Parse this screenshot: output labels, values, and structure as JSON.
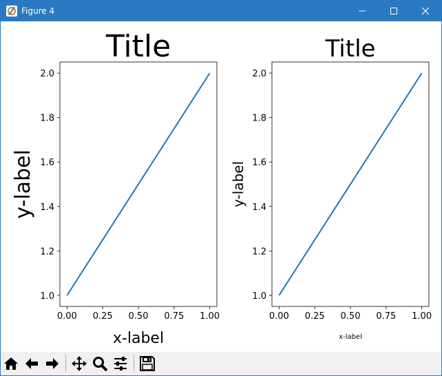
{
  "window": {
    "title": "Figure 4",
    "minimize": "—",
    "maximize": "☐",
    "close": "✕"
  },
  "chart_data": [
    {
      "type": "line",
      "title": "Title",
      "xlabel": "x-label",
      "ylabel": "y-label",
      "x": [
        0.0,
        1.0
      ],
      "series": [
        {
          "values": [
            1.0,
            2.0
          ],
          "color": "#1f77b4"
        }
      ],
      "xlim": [
        -0.05,
        1.05
      ],
      "ylim": [
        0.95,
        2.05
      ],
      "xticks": [
        "0.00",
        "0.25",
        "0.50",
        "0.75",
        "1.00"
      ],
      "yticks": [
        "1.0",
        "1.2",
        "1.4",
        "1.6",
        "1.8",
        "2.0"
      ],
      "grid": false
    },
    {
      "type": "line",
      "title": "Title",
      "xlabel": "x-label",
      "ylabel": "y-label",
      "x": [
        0.0,
        1.0
      ],
      "series": [
        {
          "values": [
            1.0,
            2.0
          ],
          "color": "#1f77b4"
        }
      ],
      "xlim": [
        -0.05,
        1.05
      ],
      "ylim": [
        0.95,
        2.05
      ],
      "xticks": [
        "0.00",
        "0.25",
        "0.50",
        "0.75",
        "1.00"
      ],
      "yticks": [
        "1.0",
        "1.2",
        "1.4",
        "1.6",
        "1.8",
        "2.0"
      ],
      "grid": false
    }
  ],
  "toolbar": {
    "buttons": [
      "home-icon",
      "back-arrow-icon",
      "forward-arrow-icon",
      "pan-icon",
      "zoom-icon",
      "configure-subplots-icon",
      "save-icon"
    ]
  }
}
